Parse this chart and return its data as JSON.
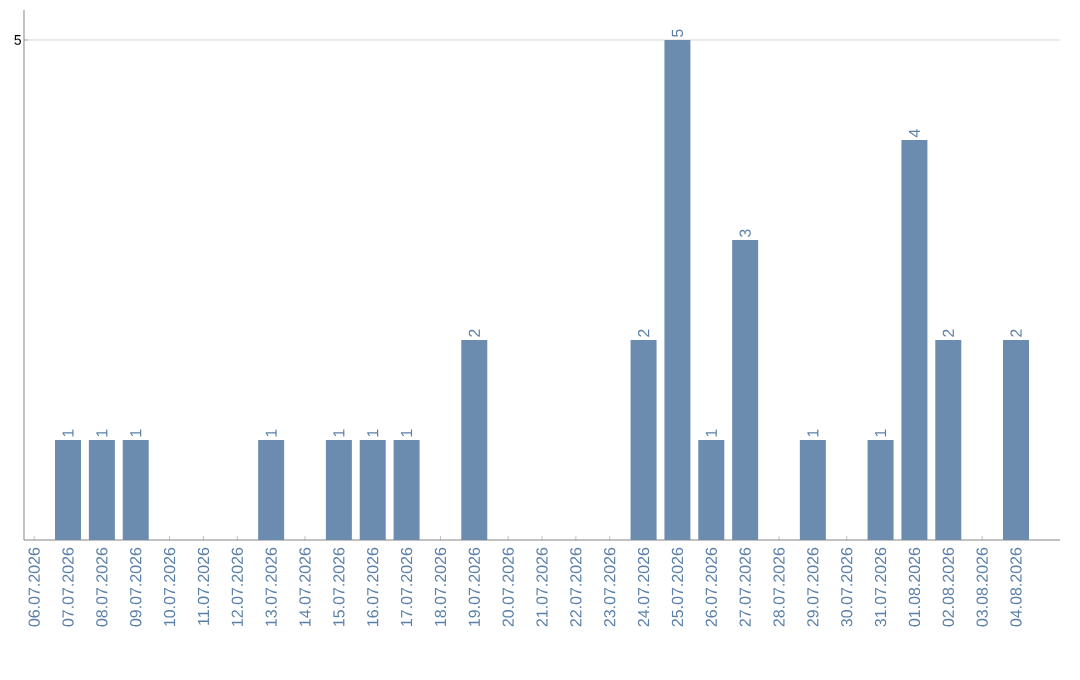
{
  "chart_data": {
    "type": "bar",
    "categories": [
      "06.07.2026",
      "07.07.2026",
      "08.07.2026",
      "09.07.2026",
      "10.07.2026",
      "11.07.2026",
      "12.07.2026",
      "13.07.2026",
      "14.07.2026",
      "15.07.2026",
      "16.07.2026",
      "17.07.2026",
      "18.07.2026",
      "19.07.2026",
      "20.07.2026",
      "21.07.2026",
      "22.07.2026",
      "23.07.2026",
      "24.07.2026",
      "25.07.2026",
      "26.07.2026",
      "27.07.2026",
      "28.07.2026",
      "29.07.2026",
      "30.07.2026",
      "31.07.2026",
      "01.08.2026",
      "02.08.2026",
      "03.08.2026",
      "04.08.2026"
    ],
    "values": [
      0,
      1,
      1,
      1,
      0,
      0,
      0,
      1,
      0,
      1,
      1,
      1,
      0,
      2,
      0,
      0,
      0,
      0,
      2,
      5,
      1,
      3,
      0,
      1,
      0,
      1,
      4,
      2,
      0,
      2
    ],
    "value_labels": [
      null,
      "1",
      "1",
      "1",
      null,
      null,
      null,
      "1",
      null,
      "1",
      "1",
      "1",
      null,
      "2",
      null,
      null,
      null,
      null,
      "2",
      "5",
      "1",
      "3",
      null,
      "1",
      null,
      "1",
      "4",
      "2",
      null,
      "2"
    ],
    "color": "#6b8cae",
    "ylim": [
      0,
      5.3
    ],
    "yticks": [
      5
    ],
    "grid": "y"
  }
}
